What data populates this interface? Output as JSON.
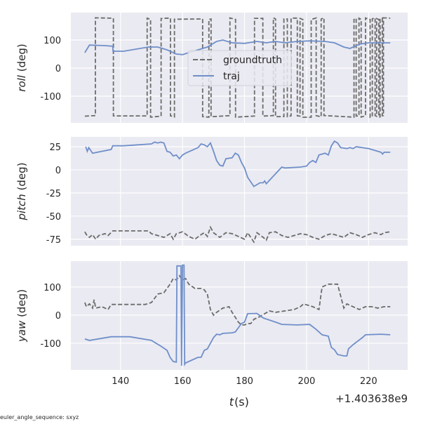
{
  "chart_data": {
    "type": "line",
    "xlabel_var": "t",
    "xlabel_unit": " (s)",
    "x_offset_label": "+1.403638e9",
    "x_ticks": [
      140,
      160,
      180,
      200,
      220
    ],
    "xlim": [
      124,
      232.6
    ],
    "footnote": "euler_angle_sequence: sxyz",
    "legend": {
      "placement": "upper-center",
      "entries": [
        "groundtruth",
        "traj"
      ]
    },
    "colors": {
      "groundtruth": "#6b6b6b",
      "traj": "#6f8fc9",
      "background": "#eaeaf2",
      "grid": "#ffffff"
    },
    "panels": [
      {
        "name": "roll",
        "ylabel_var": "roll",
        "ylabel_unit": " (deg)",
        "ylim": [
          -195,
          197.5
        ],
        "y_ticks": [
          100,
          0,
          -100
        ],
        "show_legend": true,
        "groundtruth_toggle": {
          "low": -172,
          "high": 176,
          "start": 128.5,
          "end": 227,
          "start_state": "low",
          "times": [
            131.9,
            137.7,
            148.6,
            149.7,
            153.1,
            156.1,
            157.4,
            166.5,
            168.5,
            169.2,
            175.3,
            177.1,
            183.2,
            185.9,
            189.3,
            190.0,
            192.7,
            193.8,
            195.0,
            197.0,
            197.9,
            198.8,
            201.5,
            203.1,
            204.7,
            205.6,
            215.3,
            216.0,
            216.9,
            217.6,
            219.0,
            220.5,
            221.2,
            222.1,
            222.6,
            223.3,
            223.7,
            224.4,
            224.8
          ]
        },
        "traj": [
          [
            128.5,
            55
          ],
          [
            130,
            82
          ],
          [
            135,
            80
          ],
          [
            137.5,
            78
          ],
          [
            137.6,
            60
          ],
          [
            141,
            60
          ],
          [
            149,
            75
          ],
          [
            152,
            75
          ],
          [
            155,
            65
          ],
          [
            158,
            50
          ],
          [
            160,
            48
          ],
          [
            162,
            55
          ],
          [
            165,
            65
          ],
          [
            168,
            75
          ],
          [
            171,
            95
          ],
          [
            173,
            100
          ],
          [
            176,
            90
          ],
          [
            180,
            88
          ],
          [
            184,
            95
          ],
          [
            187,
            90
          ],
          [
            190,
            95
          ],
          [
            193,
            90
          ],
          [
            197,
            95
          ],
          [
            201,
            97
          ],
          [
            206,
            95
          ],
          [
            209,
            90
          ],
          [
            212,
            75
          ],
          [
            214,
            70
          ],
          [
            217,
            85
          ],
          [
            220,
            90
          ],
          [
            227,
            90
          ]
        ]
      },
      {
        "name": "pitch",
        "ylabel_var": "pitch",
        "ylabel_unit": " (deg)",
        "ylim": [
          -82,
          35.6
        ],
        "y_ticks": [
          25,
          0,
          -25,
          -50,
          -75
        ],
        "show_legend": false,
        "groundtruth": [
          [
            128.5,
            -67
          ],
          [
            129,
            -70
          ],
          [
            130,
            -73
          ],
          [
            131,
            -70
          ],
          [
            132,
            -75
          ],
          [
            133,
            -71
          ],
          [
            135,
            -69
          ],
          [
            136,
            -71
          ],
          [
            137.5,
            -66
          ],
          [
            141,
            -66
          ],
          [
            149,
            -66
          ],
          [
            150,
            -69
          ],
          [
            152,
            -71
          ],
          [
            154,
            -73
          ],
          [
            156,
            -69
          ],
          [
            157,
            -75
          ],
          [
            158,
            -69
          ],
          [
            160,
            -67
          ],
          [
            162,
            -72
          ],
          [
            164,
            -75
          ],
          [
            166,
            -70
          ],
          [
            167,
            -68
          ],
          [
            168,
            -72
          ],
          [
            169,
            -62
          ],
          [
            170,
            -68
          ],
          [
            172,
            -73
          ],
          [
            174,
            -68
          ],
          [
            176,
            -69
          ],
          [
            178,
            -72
          ],
          [
            180,
            -75
          ],
          [
            181,
            -68
          ],
          [
            183,
            -78
          ],
          [
            184,
            -68
          ],
          [
            186,
            -73
          ],
          [
            187,
            -76
          ],
          [
            188,
            -68
          ],
          [
            190,
            -67
          ],
          [
            192,
            -71
          ],
          [
            194,
            -73
          ],
          [
            196,
            -71
          ],
          [
            198,
            -69
          ],
          [
            200,
            -70
          ],
          [
            202,
            -73
          ],
          [
            204,
            -75
          ],
          [
            206,
            -71
          ],
          [
            208,
            -69
          ],
          [
            210,
            -71
          ],
          [
            212,
            -73
          ],
          [
            214,
            -68
          ],
          [
            216,
            -70
          ],
          [
            218,
            -73
          ],
          [
            220,
            -70
          ],
          [
            222,
            -68
          ],
          [
            224,
            -70
          ],
          [
            225,
            -68
          ],
          [
            227,
            -67
          ]
        ],
        "traj": [
          [
            128.8,
            25
          ],
          [
            129.3,
            20
          ],
          [
            129.8,
            24
          ],
          [
            131,
            18
          ],
          [
            137,
            22
          ],
          [
            137.5,
            26
          ],
          [
            141,
            26
          ],
          [
            150,
            28
          ],
          [
            151,
            30
          ],
          [
            152,
            29
          ],
          [
            153,
            30
          ],
          [
            154,
            29
          ],
          [
            155,
            20
          ],
          [
            156,
            19
          ],
          [
            157,
            15
          ],
          [
            158,
            16
          ],
          [
            159,
            12
          ],
          [
            160,
            16
          ],
          [
            161,
            18
          ],
          [
            165,
            24
          ],
          [
            166,
            28
          ],
          [
            167,
            27
          ],
          [
            168,
            25
          ],
          [
            169,
            29
          ],
          [
            170,
            20
          ],
          [
            171,
            10
          ],
          [
            172,
            5
          ],
          [
            173,
            4
          ],
          [
            174,
            12
          ],
          [
            176,
            13
          ],
          [
            177,
            18
          ],
          [
            178,
            16
          ],
          [
            179,
            8
          ],
          [
            180,
            2
          ],
          [
            181,
            -8
          ],
          [
            182,
            -13
          ],
          [
            183,
            -18
          ],
          [
            184,
            -16
          ],
          [
            185,
            -14
          ],
          [
            186,
            -14
          ],
          [
            186.5,
            -12
          ],
          [
            187,
            -15
          ],
          [
            192,
            3
          ],
          [
            193,
            2
          ],
          [
            198,
            3
          ],
          [
            200,
            4
          ],
          [
            201,
            8
          ],
          [
            202,
            10
          ],
          [
            203,
            8
          ],
          [
            204,
            16
          ],
          [
            205,
            17
          ],
          [
            206,
            18
          ],
          [
            207,
            16
          ],
          [
            208,
            26
          ],
          [
            209,
            31
          ],
          [
            210,
            29
          ],
          [
            211,
            24
          ],
          [
            213,
            23
          ],
          [
            214,
            24
          ],
          [
            215,
            23
          ],
          [
            216,
            25
          ],
          [
            220,
            23
          ],
          [
            222,
            21
          ],
          [
            224,
            19
          ],
          [
            224.5,
            17
          ],
          [
            225,
            19
          ],
          [
            227,
            19
          ]
        ]
      },
      {
        "name": "yaw",
        "ylabel_var": "yaw",
        "ylabel_unit": " (deg)",
        "ylim": [
          -195,
          192
        ],
        "y_ticks": [
          100,
          0,
          -100
        ],
        "show_legend": false,
        "groundtruth": [
          [
            128.5,
            45
          ],
          [
            129,
            30
          ],
          [
            130,
            40
          ],
          [
            131,
            25
          ],
          [
            131.5,
            55
          ],
          [
            132,
            25
          ],
          [
            134,
            30
          ],
          [
            136,
            20
          ],
          [
            137,
            38
          ],
          [
            148,
            38
          ],
          [
            150,
            45
          ],
          [
            152,
            75
          ],
          [
            154,
            80
          ],
          [
            156,
            110
          ],
          [
            157,
            130
          ],
          [
            158,
            125
          ],
          [
            159,
            140
          ],
          [
            160,
            125
          ],
          [
            161,
            130
          ],
          [
            162,
            110
          ],
          [
            164,
            95
          ],
          [
            166,
            95
          ],
          [
            167,
            90
          ],
          [
            168,
            75
          ],
          [
            169,
            20
          ],
          [
            170,
            0
          ],
          [
            171,
            10
          ],
          [
            173,
            25
          ],
          [
            175,
            30
          ],
          [
            176,
            10
          ],
          [
            178,
            -25
          ],
          [
            179,
            -35
          ],
          [
            180,
            -35
          ],
          [
            181,
            -30
          ],
          [
            182,
            -30
          ],
          [
            183,
            -15
          ],
          [
            185,
            -5
          ],
          [
            188,
            15
          ],
          [
            190,
            10
          ],
          [
            193,
            15
          ],
          [
            196,
            20
          ],
          [
            198,
            30
          ],
          [
            199,
            40
          ],
          [
            202,
            30
          ],
          [
            204,
            20
          ],
          [
            205,
            100
          ],
          [
            207,
            110
          ],
          [
            209,
            110
          ],
          [
            210,
            110
          ],
          [
            212,
            25
          ],
          [
            213,
            40
          ],
          [
            215,
            30
          ],
          [
            217,
            20
          ],
          [
            219,
            30
          ],
          [
            221,
            30
          ],
          [
            223,
            25
          ],
          [
            225,
            30
          ],
          [
            227,
            30
          ]
        ],
        "traj": [
          [
            128.5,
            -85
          ],
          [
            130,
            -90
          ],
          [
            137,
            -77
          ],
          [
            143,
            -77
          ],
          [
            150,
            -90
          ],
          [
            151,
            -97
          ],
          [
            153,
            -110
          ],
          [
            155,
            -125
          ],
          [
            156,
            -150
          ],
          [
            157,
            -165
          ],
          [
            158,
            -167
          ],
          [
            158.2,
            175
          ],
          [
            159.5,
            175
          ],
          [
            159.7,
            -180
          ],
          [
            160,
            178
          ],
          [
            160.5,
            178
          ],
          [
            160.7,
            -175
          ],
          [
            161,
            -170
          ],
          [
            165,
            -150
          ],
          [
            166,
            -150
          ],
          [
            167,
            -125
          ],
          [
            168,
            -120
          ],
          [
            170,
            -80
          ],
          [
            171,
            -68
          ],
          [
            172,
            -70
          ],
          [
            173,
            -65
          ],
          [
            176,
            -63
          ],
          [
            177,
            -60
          ],
          [
            178,
            -45
          ],
          [
            179,
            -30
          ],
          [
            180,
            -25
          ],
          [
            181,
            5
          ],
          [
            184,
            6
          ],
          [
            186,
            -10
          ],
          [
            190,
            -25
          ],
          [
            192,
            -33
          ],
          [
            197,
            -35
          ],
          [
            201,
            -33
          ],
          [
            203,
            -50
          ],
          [
            205,
            -70
          ],
          [
            207,
            -75
          ],
          [
            208,
            -115
          ],
          [
            209,
            -123
          ],
          [
            210,
            -140
          ],
          [
            212,
            -145
          ],
          [
            213,
            -145
          ],
          [
            213.5,
            -120
          ],
          [
            215,
            -105
          ],
          [
            218,
            -80
          ],
          [
            219,
            -70
          ],
          [
            224,
            -68
          ],
          [
            227,
            -70
          ]
        ]
      }
    ]
  }
}
